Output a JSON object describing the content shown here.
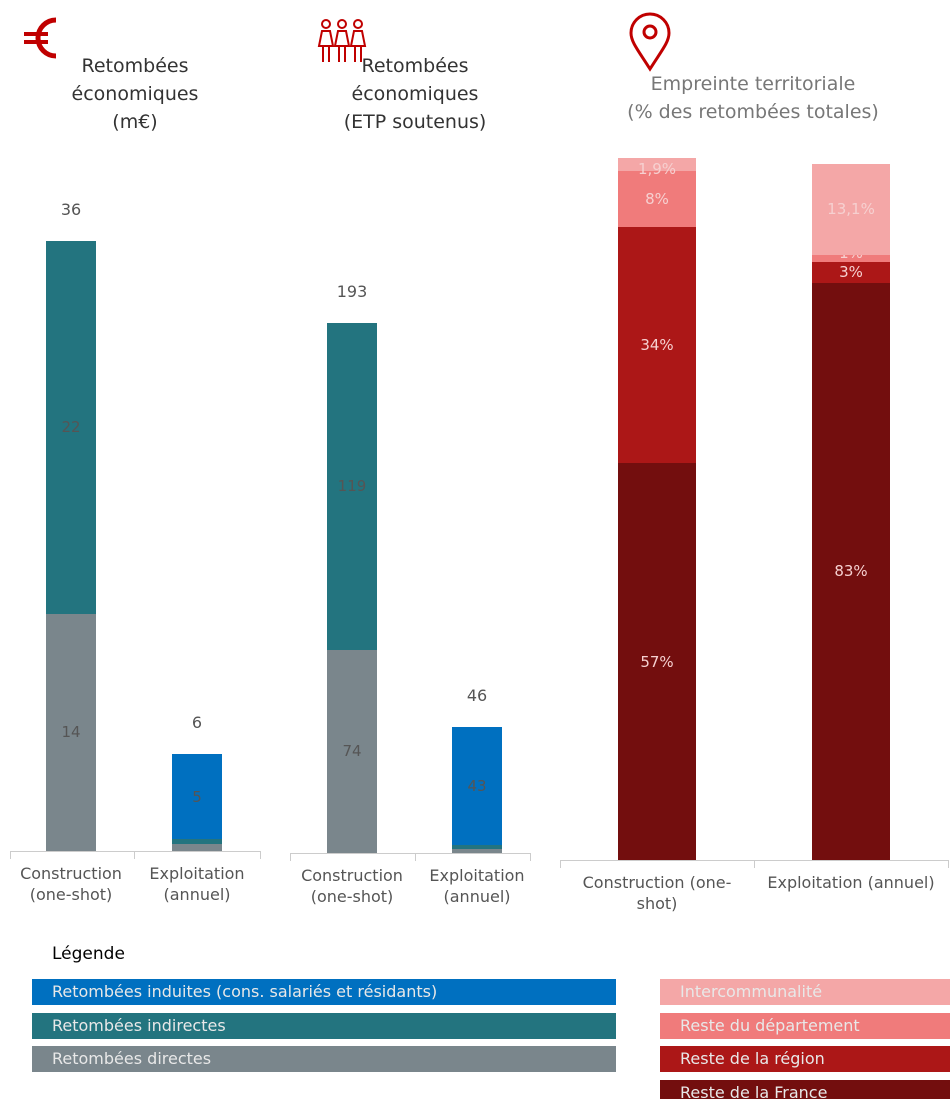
{
  "legend_title": "Légende",
  "chart_data": [
    {
      "type": "stacked-bar",
      "title": [
        "Retombées",
        "économiques",
        "(m€)"
      ],
      "categories": [
        "Construction (one-shot)",
        "Exploitation (annuel)"
      ],
      "totals": [
        36,
        6
      ],
      "series": [
        {
          "name": "Retombées directes",
          "color": "#7a868c",
          "values": [
            14,
            0.4
          ]
        },
        {
          "name": "Retombées indirectes",
          "color": "#23747f",
          "values": [
            22,
            0.3
          ]
        },
        {
          "name": "Retombées induites (cons. salariés et résidants)",
          "color": "#0070c0",
          "values": [
            null,
            5
          ]
        }
      ]
    },
    {
      "type": "stacked-bar",
      "title": [
        "Retombées",
        "économiques",
        "(ETP soutenus)"
      ],
      "categories": [
        "Construction (one-shot)",
        "Exploitation (annuel)"
      ],
      "totals": [
        193,
        46
      ],
      "series": [
        {
          "name": "Retombées directes",
          "color": "#7a868c",
          "values": [
            74,
            1.5
          ]
        },
        {
          "name": "Retombées indirectes",
          "color": "#23747f",
          "values": [
            119,
            1.5
          ]
        },
        {
          "name": "Retombées induites (cons. salariés et résidants)",
          "color": "#0070c0",
          "values": [
            null,
            43
          ]
        }
      ]
    },
    {
      "type": "stacked-bar",
      "title": [
        "Empreinte territoriale",
        "(% des retombées totales)"
      ],
      "categories": [
        "Construction (one-shot)",
        "Exploitation (annuel)"
      ],
      "series": [
        {
          "name": "Reste de la France",
          "color": "#730e0e",
          "values": [
            57,
            83
          ],
          "value_labels": [
            "57%",
            "83%"
          ]
        },
        {
          "name": "Reste de la région",
          "color": "#ac1717",
          "values": [
            34,
            3
          ],
          "value_labels": [
            "34%",
            "3%"
          ]
        },
        {
          "name": "Reste du département",
          "color": "#f07b7b",
          "values": [
            8,
            1
          ],
          "value_labels": [
            "8%",
            "1%"
          ]
        },
        {
          "name": "Intercommunalité",
          "color": "#f4a7a7",
          "values": [
            1.9,
            13.1
          ],
          "value_labels": [
            "1,9%",
            "13,1%"
          ]
        }
      ]
    }
  ]
}
